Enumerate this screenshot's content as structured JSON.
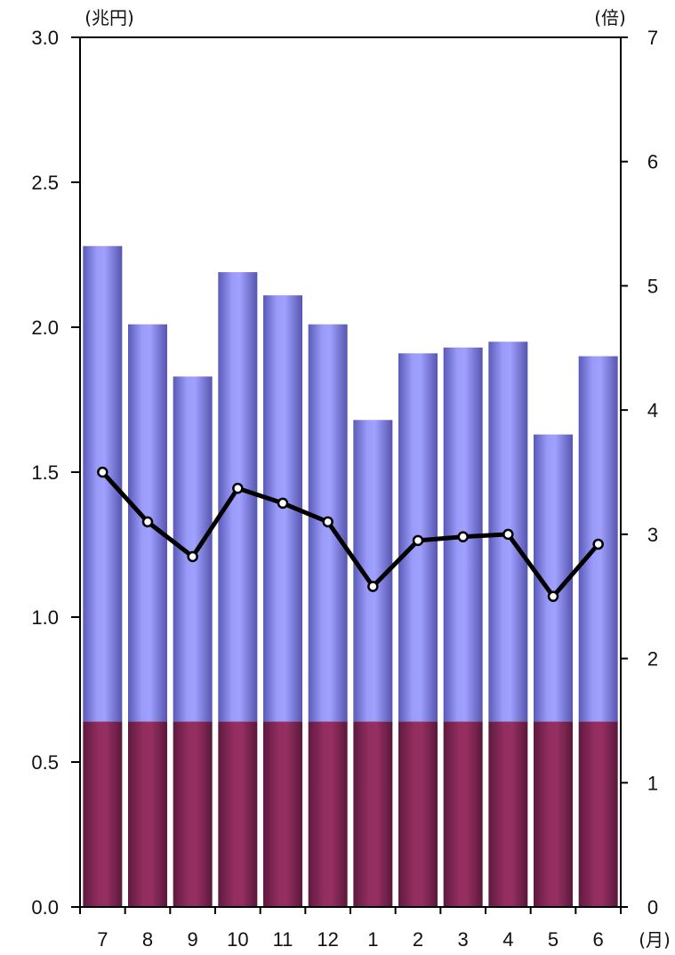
{
  "chart_data": {
    "type": "bar",
    "categories": [
      "7",
      "8",
      "9",
      "10",
      "11",
      "12",
      "1",
      "2",
      "3",
      "4",
      "5",
      "6"
    ],
    "x_unit_label": "(月)",
    "series": [
      {
        "axis": "left",
        "type": "bar",
        "stacked_part": "bottom",
        "color": "#8b2a5a",
        "values": [
          0.64,
          0.64,
          0.64,
          0.64,
          0.64,
          0.64,
          0.64,
          0.64,
          0.64,
          0.64,
          0.64,
          0.64
        ]
      },
      {
        "axis": "left",
        "type": "bar",
        "stacked_part": "top",
        "color": "#8f8ff0",
        "values": [
          1.64,
          1.37,
          1.19,
          1.55,
          1.47,
          1.37,
          1.04,
          1.27,
          1.29,
          1.31,
          0.99,
          1.26
        ]
      },
      {
        "axis": "right",
        "type": "line",
        "color": "#000000",
        "values": [
          3.5,
          3.1,
          2.82,
          3.37,
          3.25,
          3.1,
          2.58,
          2.95,
          2.98,
          3.0,
          2.5,
          2.92
        ]
      }
    ],
    "left_axis": {
      "unit_label": "(兆円)",
      "ylim": [
        0,
        3.0
      ],
      "ticks": [
        "0.0",
        "0.5",
        "1.0",
        "1.5",
        "2.0",
        "2.5",
        "3.0"
      ]
    },
    "right_axis": {
      "unit_label": "(倍)",
      "ylim": [
        0,
        7
      ],
      "ticks": [
        "0",
        "1",
        "2",
        "3",
        "4",
        "5",
        "6",
        "7"
      ]
    },
    "grid": false
  }
}
